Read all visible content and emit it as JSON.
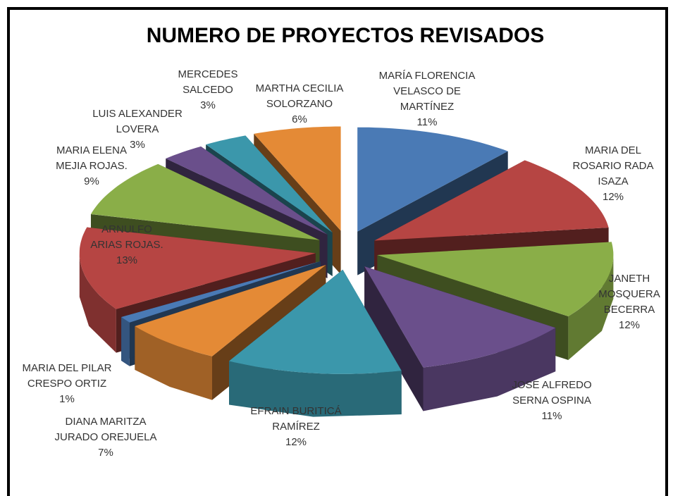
{
  "chart_data": {
    "type": "pie3d",
    "title": "NUMERO DE PROYECTOS REVISADOS",
    "categories": [
      [
        "MARÍA FLORENCIA",
        "VELASCO DE",
        "MARTÍNEZ"
      ],
      [
        "MARIA DEL",
        "ROSARIO RADA",
        "ISAZA"
      ],
      [
        "JANETH",
        "MOSQUERA",
        "BECERRA"
      ],
      [
        "JOSE ALFREDO",
        "SERNA OSPINA"
      ],
      [
        "EFRAIN BURITICÁ",
        "RAMÍREZ"
      ],
      [
        "DIANA  MARITZA",
        "JURADO OREJUELA"
      ],
      [
        "MARIA DEL PILAR",
        "CRESPO ORTIZ"
      ],
      [
        "ARNULFO",
        "ARIAS ROJAS."
      ],
      [
        "MARIA ELENA",
        "MEJIA ROJAS."
      ],
      [
        "LUIS ALEXANDER",
        "LOVERA"
      ],
      [
        "MERCEDES",
        "SALCEDO"
      ],
      [
        "MARTHA CECILIA",
        "SOLORZANO"
      ]
    ],
    "values": [
      11,
      12,
      12,
      11,
      12,
      7,
      1,
      13,
      9,
      3,
      3,
      6
    ],
    "value_labels": [
      "11%",
      "12%",
      "12%",
      "11%",
      "12%",
      "7%",
      "1%",
      "13%",
      "9%",
      "3%",
      "3%",
      "6%"
    ],
    "colors": [
      "#4a7ab5",
      "#b64543",
      "#8aae48",
      "#6a4f8b",
      "#3b97ab",
      "#e48a36",
      "#4a7ab5",
      "#b64543",
      "#8aae48",
      "#6a4f8b",
      "#3b97ab",
      "#e48a36"
    ]
  }
}
